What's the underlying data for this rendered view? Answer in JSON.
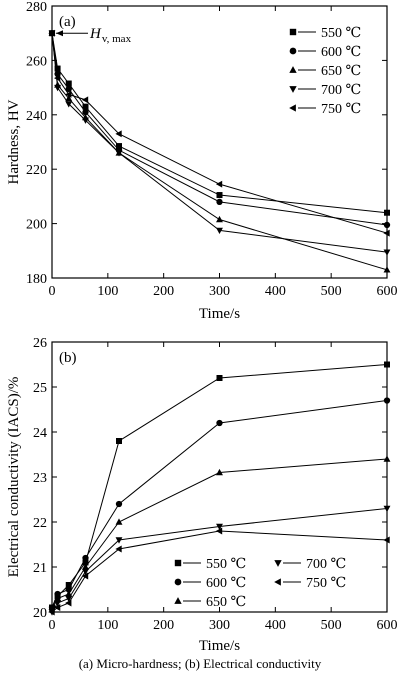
{
  "caption": "(a) Micro-hardness; (b) Electrical conductivity",
  "chart_data": [
    {
      "type": "line",
      "panel_label": "(a)",
      "annotation": {
        "text": "H",
        "subscript": "v, max"
      },
      "xlabel": "Time/s",
      "ylabel": "Hardness, HV",
      "xlim": [
        0,
        600
      ],
      "ylim": [
        180,
        280
      ],
      "xticks": [
        0,
        100,
        200,
        300,
        400,
        500,
        600
      ],
      "yticks": [
        180,
        200,
        220,
        240,
        260,
        280
      ],
      "legend_position": "top-right",
      "x": [
        0,
        10,
        30,
        60,
        120,
        300,
        600
      ],
      "series": [
        {
          "name": "550 ℃",
          "marker": "square",
          "values": [
            270,
            257,
            251.5,
            243,
            228.5,
            210.5,
            204
          ]
        },
        {
          "name": "600 ℃",
          "marker": "circle",
          "values": [
            270,
            255,
            249.5,
            241,
            227,
            208,
            199.5
          ]
        },
        {
          "name": "650 ℃",
          "marker": "triangle-up",
          "values": [
            270,
            251,
            246,
            239,
            226,
            201.5,
            183
          ]
        },
        {
          "name": "700 ℃",
          "marker": "triangle-down",
          "values": [
            270,
            250,
            244,
            238,
            226,
            197.5,
            189.5
          ]
        },
        {
          "name": "750 ℃",
          "marker": "triangle-left",
          "values": [
            270,
            253.5,
            247.5,
            245.5,
            233,
            214.5,
            196.5
          ]
        }
      ]
    },
    {
      "type": "line",
      "panel_label": "(b)",
      "xlabel": "Time/s",
      "ylabel": "Electrical conductivity (IACS)/%",
      "xlim": [
        0,
        600
      ],
      "ylim": [
        20,
        26
      ],
      "xticks": [
        0,
        100,
        200,
        300,
        400,
        500,
        600
      ],
      "yticks": [
        20,
        21,
        22,
        23,
        24,
        25,
        26
      ],
      "legend_position": "bottom-center",
      "x": [
        0,
        10,
        30,
        60,
        120,
        300,
        600
      ],
      "series": [
        {
          "name": "550 ℃",
          "marker": "square",
          "values": [
            20.1,
            20.35,
            20.6,
            21.1,
            23.8,
            25.2,
            25.5
          ]
        },
        {
          "name": "600 ℃",
          "marker": "circle",
          "values": [
            20.1,
            20.4,
            20.5,
            21.2,
            22.4,
            24.2,
            24.7
          ]
        },
        {
          "name": "650 ℃",
          "marker": "triangle-up",
          "values": [
            20.05,
            20.3,
            20.4,
            21.0,
            22.0,
            23.1,
            23.4
          ]
        },
        {
          "name": "700 ℃",
          "marker": "triangle-down",
          "values": [
            20.0,
            20.2,
            20.3,
            20.9,
            21.6,
            21.9,
            22.3
          ]
        },
        {
          "name": "750 ℃",
          "marker": "triangle-left",
          "values": [
            20.0,
            20.1,
            20.2,
            20.8,
            21.4,
            21.8,
            21.6
          ]
        }
      ]
    }
  ]
}
